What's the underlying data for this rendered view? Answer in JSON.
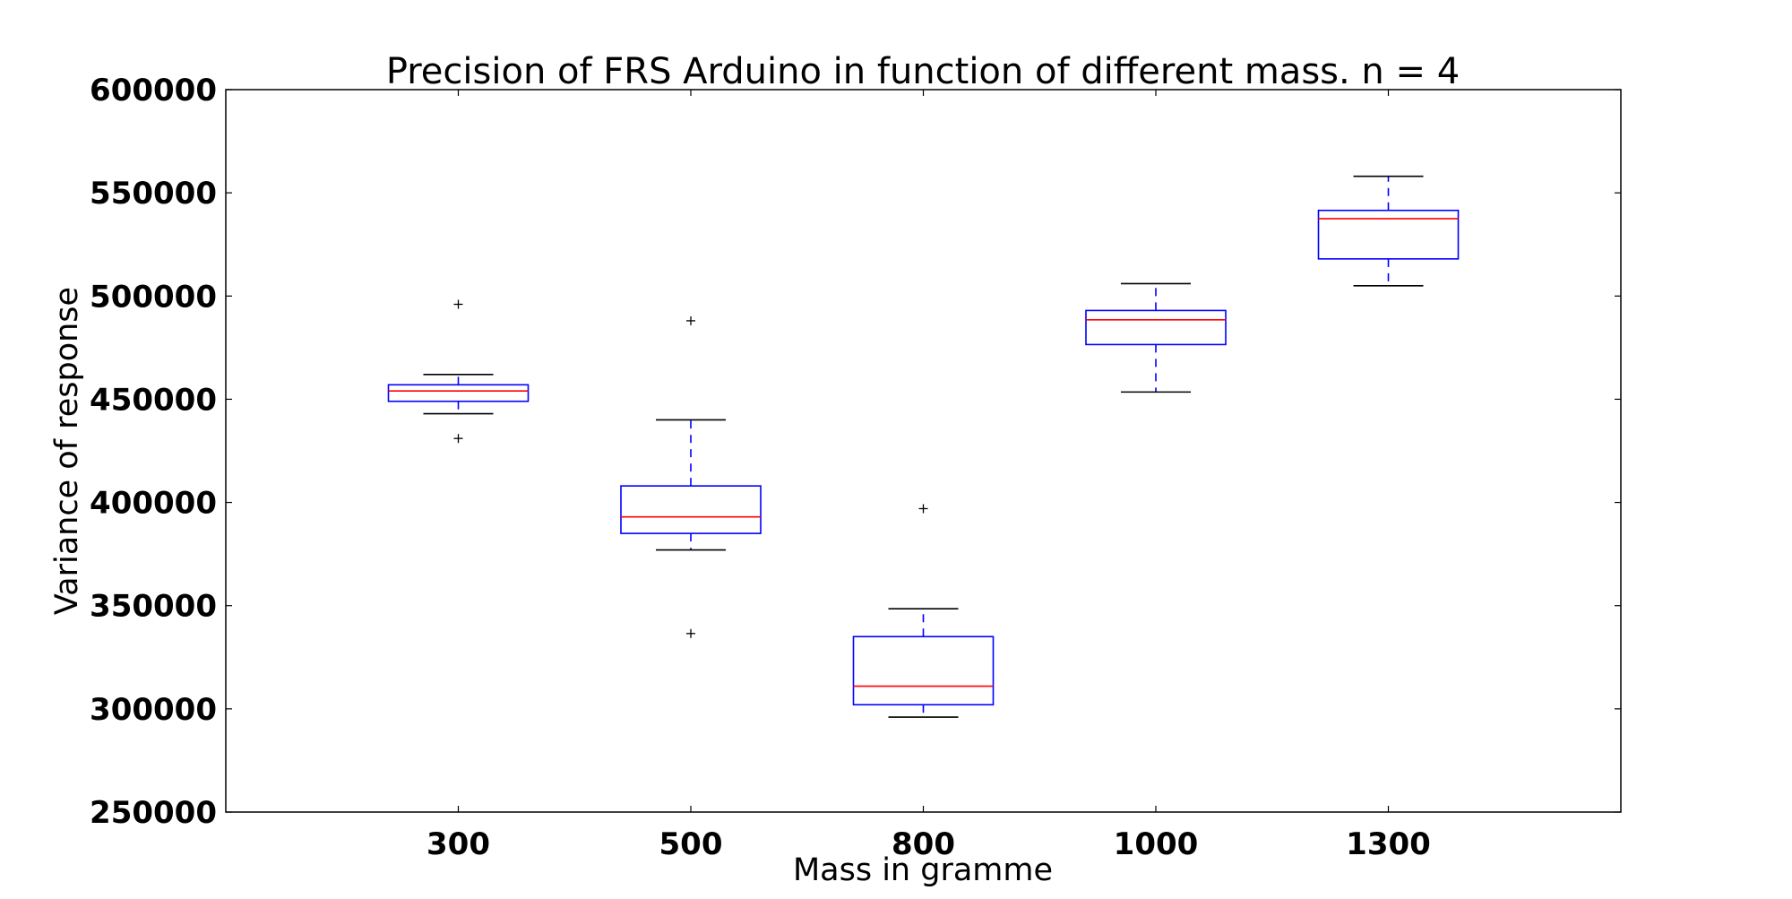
{
  "chart_data": {
    "type": "boxplot",
    "title": "Precision of FRS Arduino in function of different mass. n = 4",
    "xlabel": "Mass in gramme",
    "ylabel": "Variance of response",
    "categories": [
      "300",
      "500",
      "800",
      "1000",
      "1300"
    ],
    "ylim": [
      250000,
      600000
    ],
    "yticks": [
      250000,
      300000,
      350000,
      400000,
      450000,
      500000,
      550000,
      600000
    ],
    "ytick_labels": [
      "250000",
      "300000",
      "350000",
      "400000",
      "450000",
      "500000",
      "550000",
      "600000"
    ],
    "grid": false,
    "boxes": [
      {
        "category": "300",
        "whisker_low": 443000,
        "q1": 449000,
        "median": 454000,
        "q3": 457000,
        "whisker_high": 462000,
        "outliers": [
          496000,
          431000
        ]
      },
      {
        "category": "500",
        "whisker_low": 377000,
        "q1": 385000,
        "median": 393000,
        "q3": 408000,
        "whisker_high": 440000,
        "outliers": [
          488000,
          336500
        ]
      },
      {
        "category": "800",
        "whisker_low": 296000,
        "q1": 302000,
        "median": 311000,
        "q3": 335000,
        "whisker_high": 348500,
        "outliers": [
          397000
        ]
      },
      {
        "category": "1000",
        "whisker_low": 453500,
        "q1": 476500,
        "median": 488500,
        "q3": 493000,
        "whisker_high": 506000,
        "outliers": []
      },
      {
        "category": "1300",
        "whisker_low": 505000,
        "q1": 518000,
        "median": 537500,
        "q3": 541500,
        "whisker_high": 558000,
        "outliers": []
      }
    ],
    "colors": {
      "box": "#0000ff",
      "median": "#ff0000",
      "whisker_cap": "#000000",
      "whisker_line": "#0000ff",
      "outlier": "#000000",
      "axes": "#000000"
    }
  }
}
